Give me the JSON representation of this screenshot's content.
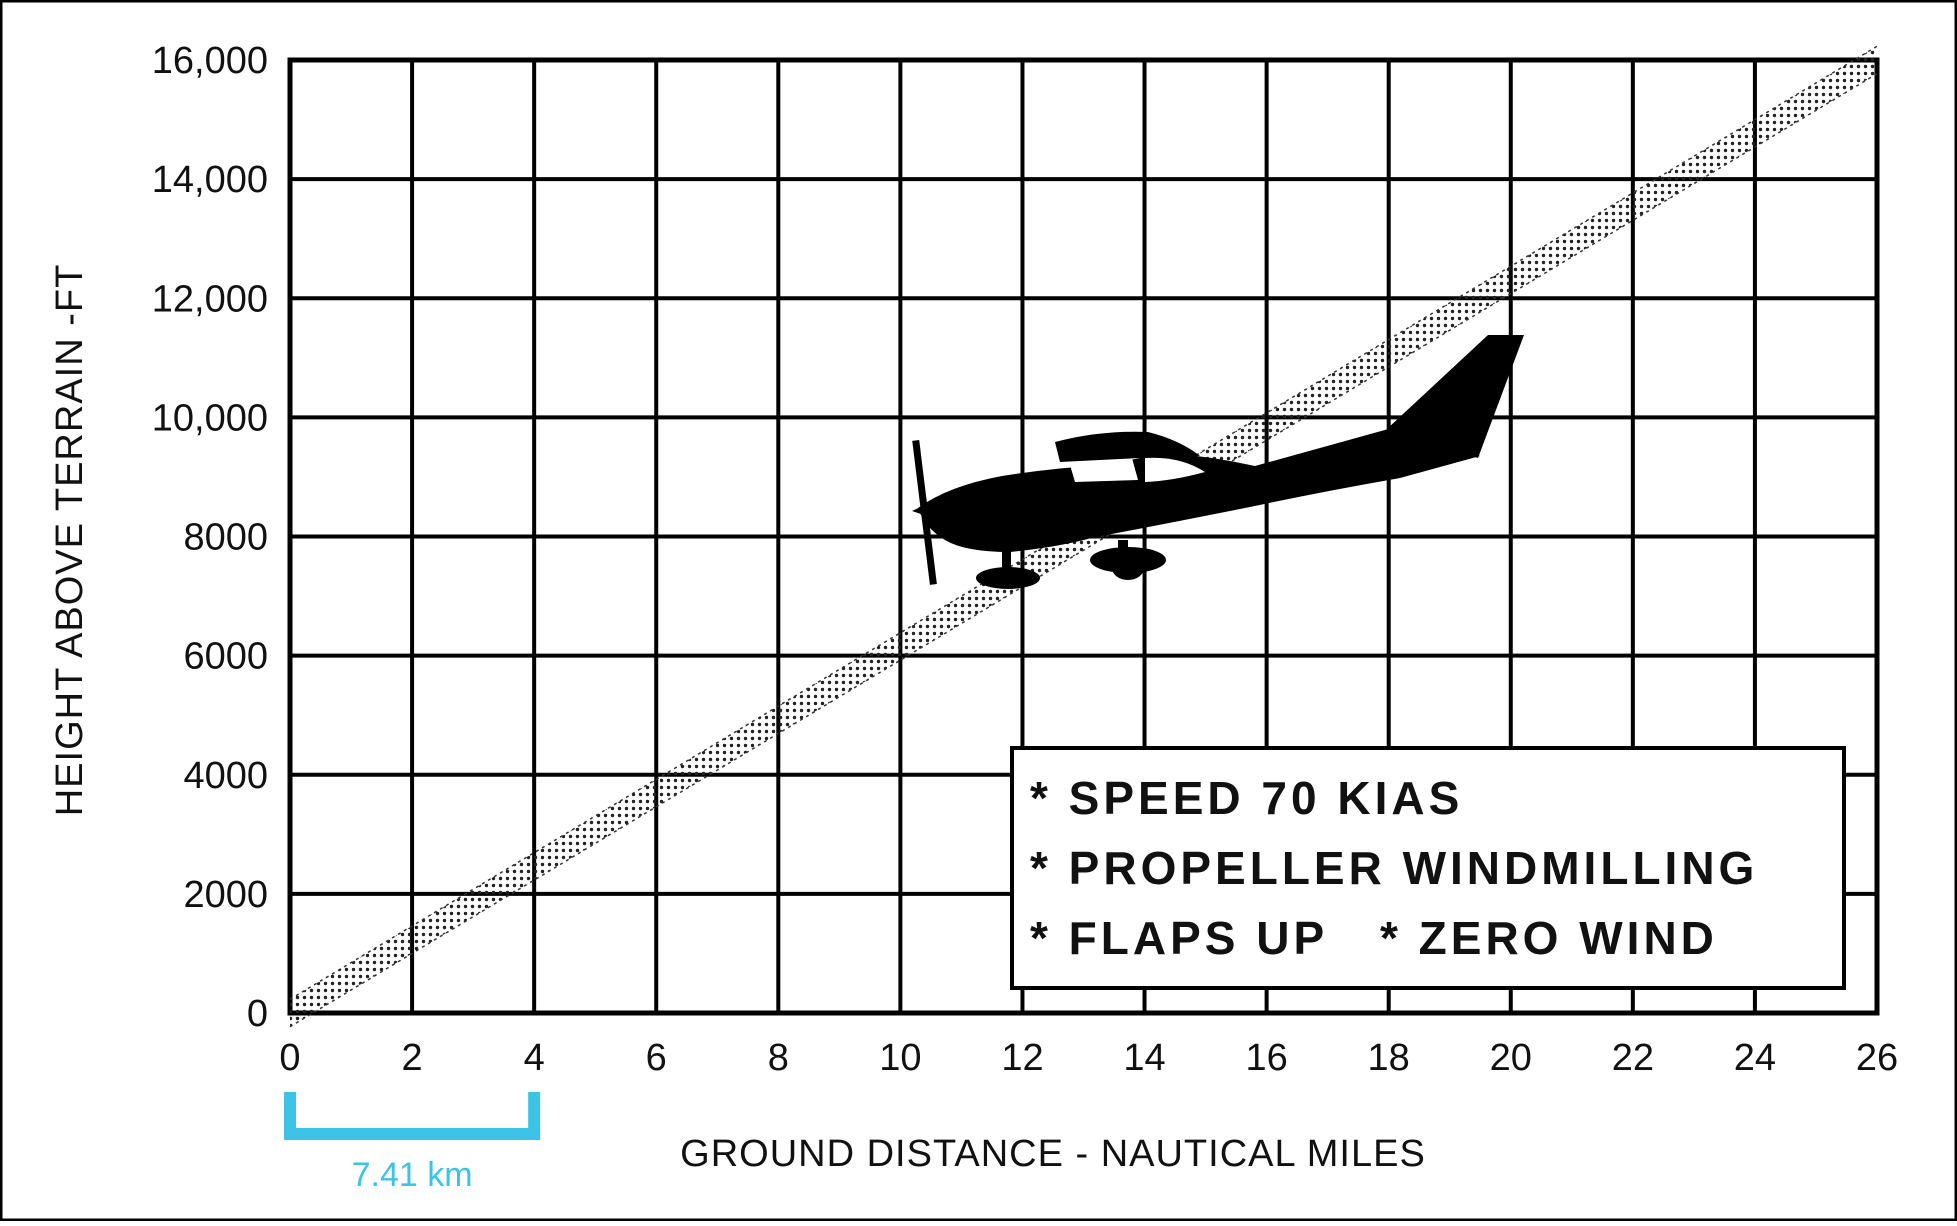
{
  "chart_data": {
    "type": "line",
    "title": "",
    "xlabel": "GROUND DISTANCE - NAUTICAL MILES",
    "ylabel": "HEIGHT ABOVE TERRAIN -FT",
    "x_ticks": [
      "0",
      "2",
      "4",
      "6",
      "8",
      "10",
      "12",
      "14",
      "16",
      "18",
      "20",
      "22",
      "24",
      "26"
    ],
    "y_ticks": [
      "0",
      "2000",
      "4000",
      "6000",
      "8000",
      "10,000",
      "12,000",
      "14,000",
      "16,000"
    ],
    "xlim": [
      0,
      26
    ],
    "ylim": [
      0,
      16000
    ],
    "grid": true,
    "series": [
      {
        "x": [
          0,
          2,
          4,
          6,
          8,
          10,
          12,
          14,
          16,
          18,
          20,
          22,
          24,
          26
        ],
        "y": [
          0,
          1231,
          2462,
          3692,
          4923,
          6154,
          7385,
          8615,
          9846,
          11077,
          12308,
          13538,
          14769,
          16000
        ],
        "band_low": [
          -230,
          1000,
          2231,
          3462,
          4692,
          5923,
          7154,
          8385,
          9615,
          10846,
          12077,
          13308,
          14539,
          15770
        ],
        "band_high": [
          230,
          1461,
          2692,
          3923,
          5154,
          6385,
          7616,
          8846,
          10077,
          11308,
          12539,
          13769,
          15000,
          16230
        ],
        "color": "#333333"
      }
    ],
    "notes": [
      "* SPEED 70 KIAS",
      "* PROPELLER WINDMILLING",
      "* FLAPS UP",
      "* ZERO WIND"
    ],
    "scale_bar": {
      "from": 0,
      "to": 4,
      "label": "7.41 km",
      "color": "#3cc3e6"
    },
    "grid_color": "#000000",
    "airplane_icon": "airplane-silhouette-icon"
  }
}
